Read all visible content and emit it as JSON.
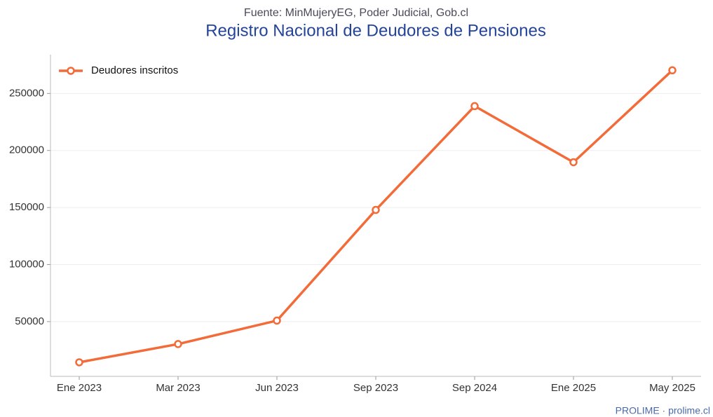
{
  "chart_data": {
    "type": "line",
    "subtitle": "Fuente: MinMujeryEG, Poder Judicial, Gob.cl",
    "title": "Registro Nacional de Deudores de Pensiones",
    "categories": [
      "Ene 2023",
      "Mar 2023",
      "Jun 2023",
      "Sep 2023",
      "Sep 2024",
      "Ene 2025",
      "May 2025"
    ],
    "series": [
      {
        "name": "Deudores inscritos",
        "color": "#f26b38",
        "values": [
          14300,
          30300,
          50900,
          147900,
          238900,
          189700,
          270300
        ]
      }
    ],
    "ylim": [
      2000,
      284000
    ],
    "yticks": [
      50000,
      100000,
      150000,
      200000,
      250000
    ],
    "grid": true,
    "legend": "upper left",
    "footer": "PROLIME · prolime.cl"
  }
}
